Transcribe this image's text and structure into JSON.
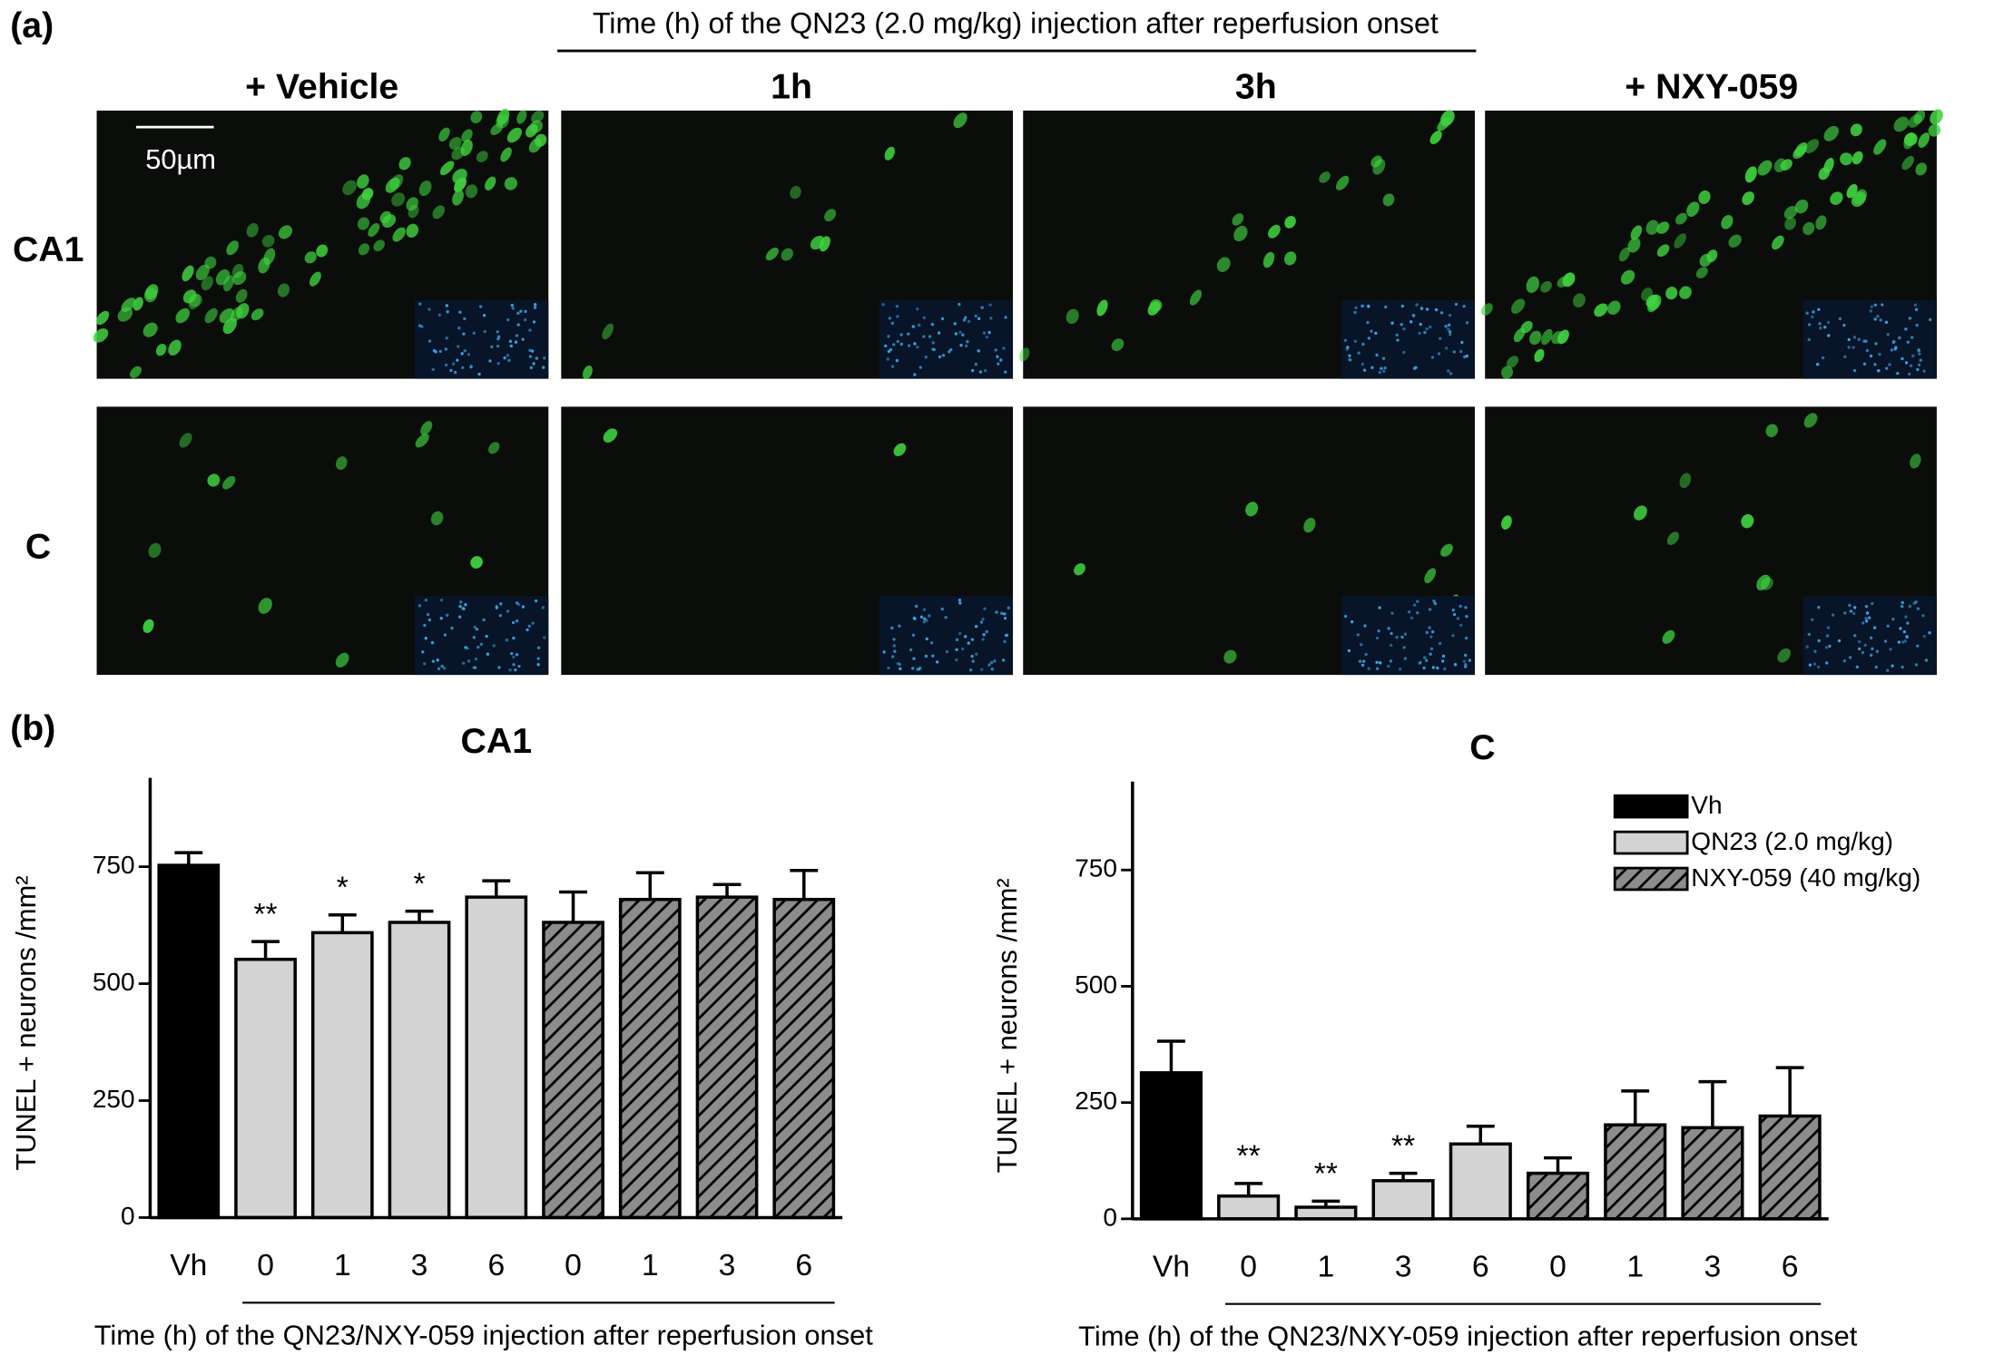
{
  "figure": {
    "panel_a": {
      "label": "(a)",
      "title": "Time (h) of the QN23 (2.0 mg/kg) injection after reperfusion onset",
      "columns": [
        "+ Vehicle",
        "1h",
        "3h",
        "+ NXY-059"
      ],
      "rows": [
        "CA1",
        "C"
      ],
      "scale_bar": "50µm"
    },
    "panel_b": {
      "label": "(b)"
    }
  },
  "chart_data": [
    {
      "type": "bar",
      "title": "CA1",
      "categories": [
        "Vh",
        "0",
        "1",
        "3",
        "6",
        "0",
        "1",
        "3",
        "6"
      ],
      "series": [
        {
          "color": "#000000",
          "values": [
            753,
            null,
            null,
            null,
            null,
            null,
            null,
            null,
            null
          ],
          "errors": [
            27,
            null,
            null,
            null,
            null,
            null,
            null,
            null,
            null
          ]
        },
        {
          "color": "#d3d3d3",
          "values": [
            null,
            552,
            609,
            631,
            685,
            null,
            null,
            null,
            null
          ],
          "errors": [
            null,
            38,
            38,
            24,
            35,
            null,
            null,
            null,
            null
          ]
        },
        {
          "color": "#8c8c8c",
          "hatch": true,
          "values": [
            null,
            null,
            null,
            null,
            null,
            631,
            680,
            685,
            680
          ],
          "errors": [
            null,
            null,
            null,
            null,
            null,
            65,
            57,
            27,
            62
          ]
        }
      ],
      "significance": [
        null,
        "**",
        "*",
        "*",
        null,
        null,
        null,
        null,
        null
      ],
      "ylabel": "TUNEL + neurons /mm²",
      "xlabel": "Time (h) of the QN23/NXY-059 injection after reperfusion onset",
      "ylim": [
        0,
        940
      ],
      "yticks": [
        0,
        250,
        500,
        750
      ]
    },
    {
      "type": "bar",
      "title": "C",
      "categories": [
        "Vh",
        "0",
        "1",
        "3",
        "6",
        "0",
        "1",
        "3",
        "6"
      ],
      "series": [
        {
          "name": "Vh",
          "color": "#000000",
          "values": [
            314,
            null,
            null,
            null,
            null,
            null,
            null,
            null,
            null
          ],
          "errors": [
            68,
            null,
            null,
            null,
            null,
            null,
            null,
            null,
            null
          ]
        },
        {
          "name": "QN23 (2.0 mg/kg)",
          "color": "#d3d3d3",
          "values": [
            null,
            49,
            25,
            82,
            161,
            null,
            null,
            null,
            null
          ],
          "errors": [
            null,
            27,
            13,
            16,
            38,
            null,
            null,
            null,
            null
          ]
        },
        {
          "name": "NXY-059 (40 mg/kg)",
          "color": "#8c8c8c",
          "hatch": true,
          "values": [
            null,
            null,
            null,
            null,
            null,
            98,
            202,
            196,
            221
          ],
          "errors": [
            null,
            null,
            null,
            null,
            null,
            33,
            73,
            99,
            104
          ]
        }
      ],
      "significance": [
        null,
        "**",
        "**",
        "**",
        null,
        null,
        null,
        null,
        null
      ],
      "ylabel": "TUNEL + neurons /mm²",
      "xlabel": "Time (h) of the QN23/NXY-059 injection after reperfusion onset",
      "ylim": [
        0,
        940
      ],
      "yticks": [
        0,
        250,
        500,
        750
      ],
      "legend": "top-right"
    }
  ]
}
